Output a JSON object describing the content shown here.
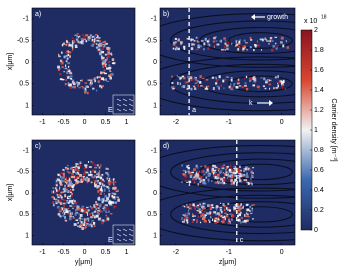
{
  "chart_data": [
    {
      "type": "heatmap",
      "panel_label": "a)",
      "inset_label": "E",
      "ylabel": "x[μm]",
      "xlim": [
        -1.25,
        1.2
      ],
      "ylim": [
        1.22,
        -1.25
      ],
      "xticks": [
        -1,
        -0.5,
        0,
        0.5,
        1
      ],
      "yticks": [
        -1,
        -0.5,
        0,
        0.5,
        1
      ]
    },
    {
      "type": "heatmap",
      "panel_label": "b)",
      "growth_label": "growth",
      "k_label": "k",
      "line_label": "a",
      "line_z": -1.75,
      "xlim": [
        -2.3,
        0.25
      ],
      "ylim": [
        1.22,
        -1.25
      ],
      "xticks": [
        -2,
        -1,
        0
      ],
      "yticks": [
        -1,
        -0.5,
        0,
        0.5,
        1
      ]
    },
    {
      "type": "heatmap",
      "panel_label": "c)",
      "inset_label": "E",
      "ylabel": "x[μm]",
      "xlabel": "y[μm]",
      "xlim": [
        -1.25,
        1.2
      ],
      "ylim": [
        1.22,
        -1.25
      ],
      "xticks": [
        -1,
        -0.5,
        0,
        0.5,
        1
      ],
      "yticks": [
        -1,
        -0.5,
        0,
        0.5,
        1
      ]
    },
    {
      "type": "heatmap",
      "panel_label": "d)",
      "xlabel": "z[μm]",
      "line_label": "c",
      "line_z": -0.85,
      "xlim": [
        -2.3,
        0.25
      ],
      "ylim": [
        1.22,
        -1.25
      ],
      "xticks": [
        -2,
        -1,
        0
      ],
      "yticks": [
        -1,
        -0.5,
        0,
        0.5,
        1
      ]
    }
  ],
  "colorbar": {
    "label": "Carrier density [m⁻³]",
    "scale_label": "x 10",
    "scale_exponent": "18",
    "lim": [
      0,
      2
    ],
    "ticks": [
      0,
      0.2,
      0.4,
      0.6,
      0.8,
      1,
      1.2,
      1.4,
      1.6,
      1.8,
      2
    ]
  }
}
